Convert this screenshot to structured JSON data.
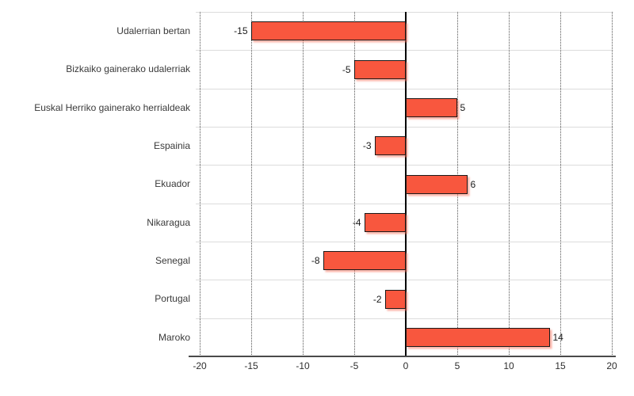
{
  "chart_data": {
    "type": "bar",
    "orientation": "horizontal",
    "title": "",
    "xlabel": "",
    "ylabel": "",
    "categories": [
      "Udalerrian bertan",
      "Bizkaiko gainerako udalerriak",
      "Euskal Herriko gainerako herrialdeak",
      "Espainia",
      "Ekuador",
      "Nikaragua",
      "Senegal",
      "Portugal",
      "Maroko"
    ],
    "values": [
      -15,
      -5,
      5,
      -3,
      6,
      -4,
      -8,
      -2,
      14
    ],
    "value_labels": [
      "-15",
      "-5",
      "5",
      "-3",
      "6",
      "-4",
      "-8",
      "-2",
      "14"
    ],
    "xlim": [
      -20,
      20
    ],
    "xticks": [
      -20,
      -15,
      -10,
      -5,
      0,
      5,
      10,
      15,
      20
    ],
    "grid": "vertical dotted gridlines every 5 units; light horizontal row separators",
    "legend": "none",
    "colors": {
      "bar_fill": "#F8573E",
      "bar_border": "#1A1A1A",
      "bar_shadow": "rgba(250,120,100,0.55)",
      "zero_line": "#000000",
      "axis_line": "#4A4A4A",
      "gridline": "#555555",
      "row_separator": "#DCDCDC",
      "category_label": "#3A3A3A",
      "value_label": "#1A1A1A",
      "tick_label": "#2E2E2E",
      "background": "#FFFFFF"
    }
  }
}
